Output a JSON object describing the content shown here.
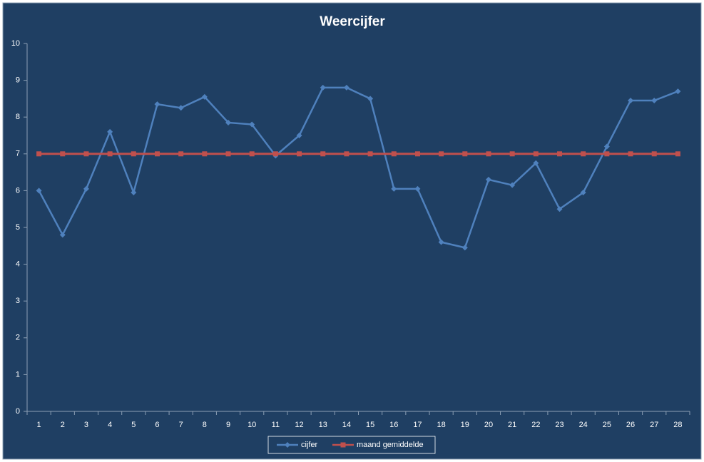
{
  "chart_data": {
    "type": "line",
    "title": "Weercijfer",
    "categories": [
      1,
      2,
      3,
      4,
      5,
      6,
      7,
      8,
      9,
      10,
      11,
      12,
      13,
      14,
      15,
      16,
      17,
      18,
      19,
      20,
      21,
      22,
      23,
      24,
      25,
      26,
      27,
      28
    ],
    "series": [
      {
        "name": "cijfer",
        "color": "#4f81bd",
        "marker": "diamond",
        "values": [
          6.0,
          4.8,
          6.05,
          7.6,
          5.95,
          8.35,
          8.25,
          8.55,
          7.85,
          7.8,
          6.95,
          7.5,
          8.8,
          8.8,
          8.5,
          6.05,
          6.05,
          4.6,
          4.45,
          6.3,
          6.15,
          6.75,
          5.5,
          5.95,
          7.2,
          8.45,
          8.45,
          8.7
        ]
      },
      {
        "name": "maand gemiddelde",
        "color": "#c0504d",
        "marker": "square",
        "values": [
          7.0,
          7.0,
          7.0,
          7.0,
          7.0,
          7.0,
          7.0,
          7.0,
          7.0,
          7.0,
          7.0,
          7.0,
          7.0,
          7.0,
          7.0,
          7.0,
          7.0,
          7.0,
          7.0,
          7.0,
          7.0,
          7.0,
          7.0,
          7.0,
          7.0,
          7.0,
          7.0,
          7.0
        ]
      }
    ],
    "ylim": [
      0,
      10
    ],
    "yticks": [
      0,
      1,
      2,
      3,
      4,
      5,
      6,
      7,
      8,
      9,
      10
    ],
    "grid": false,
    "legend": "bottom"
  }
}
